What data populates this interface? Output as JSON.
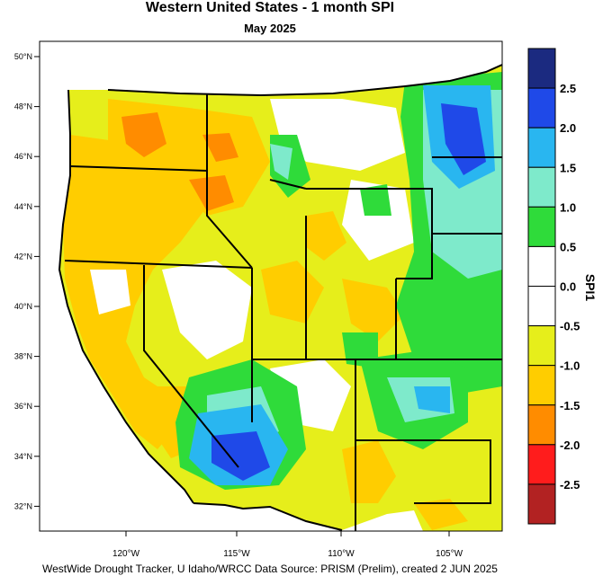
{
  "title": "Western United States - 1 month SPI",
  "subtitle": "May 2025",
  "footer": "WestWide Drought Tracker, U Idaho/WRCC Data Source: PRISM (Prelim), created  2 JUN 2025",
  "colorbar": {
    "label": "SPI1",
    "ticks": [
      "2.5",
      "2.0",
      "1.5",
      "1.0",
      "0.5",
      "0.0",
      "-0.5",
      "-1.0",
      "-1.5",
      "-2.0",
      "-2.5"
    ],
    "bins": [
      {
        "color": "#1b2a80"
      },
      {
        "color": "#1f49e8"
      },
      {
        "color": "#29b6f0"
      },
      {
        "color": "#7eeacb"
      },
      {
        "color": "#2fdb3a"
      },
      {
        "color": "#ffffff"
      },
      {
        "color": "#ffffff"
      },
      {
        "color": "#e6ee1b"
      },
      {
        "color": "#ffcd00"
      },
      {
        "color": "#ff8c00"
      },
      {
        "color": "#ff1c1c"
      },
      {
        "color": "#b22222"
      }
    ]
  },
  "axes": {
    "lat_labels": [
      "50°N",
      "48°N",
      "46°N",
      "44°N",
      "42°N",
      "40°N",
      "38°N",
      "36°N",
      "34°N",
      "32°N"
    ],
    "lon_labels": [
      "120°W",
      "115°W",
      "110°W",
      "105°W"
    ]
  },
  "colors": {
    "dry_mild": "#e6ee1b",
    "dry_moderate": "#ffcd00",
    "dry_severe": "#ff8c00",
    "wet_mild": "#2fdb3a",
    "wet_moderate": "#7eeacb",
    "wet_high": "#29b6f0",
    "wet_very_high": "#1f49e8",
    "ocean": "#ffffff",
    "border": "#000000"
  }
}
